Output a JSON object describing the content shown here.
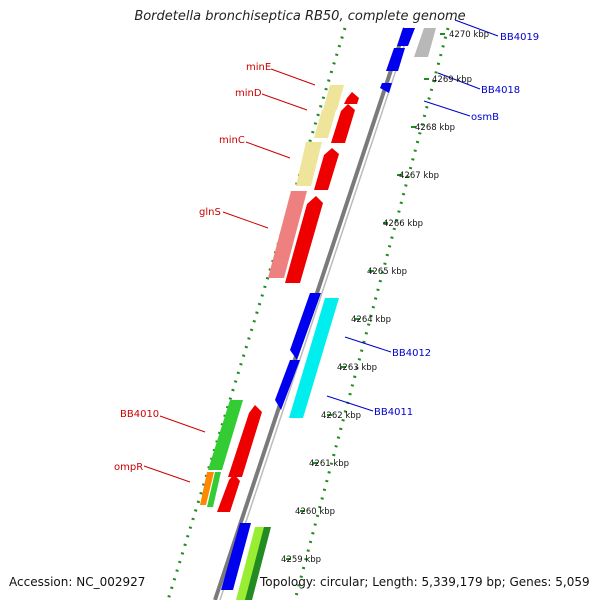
{
  "title": "Bordetella bronchiseptica RB50, complete genome",
  "footer": {
    "accession": "Accession: NC_002927",
    "topology": "Topology: circular; Length: 5,339,179 bp; Genes: 5,059"
  },
  "scale_labels": [
    "4270 kbp",
    "4269 kbp",
    "4268 kbp",
    "4267 kbp",
    "4266 kbp",
    "4265 kbp",
    "4264 kbp",
    "4263 kbp",
    "4262 kbp",
    "4261 kbp",
    "4260 kbp",
    "4259 kbp"
  ],
  "gene_labels": {
    "forward": [
      "BB4019",
      "BB4018",
      "osmB",
      "BB4012",
      "BB4011"
    ],
    "reverse": [
      "minE",
      "minD",
      "minC",
      "glnS",
      "BB4010",
      "ompR"
    ]
  },
  "colors": {
    "forward_label": "#0000cc",
    "reverse_label": "#cc0000",
    "cds_forward": "#0000ee",
    "cds_reverse": "#ee0000",
    "cog_cyan": "#00eeee",
    "cog_yellow": "#eee49a",
    "cog_pink": "#ee8080",
    "cog_green": "#33cc33",
    "cog_lightgreen": "#99ee33",
    "cog_orange": "#ff8800",
    "tick": "#228B22"
  }
}
